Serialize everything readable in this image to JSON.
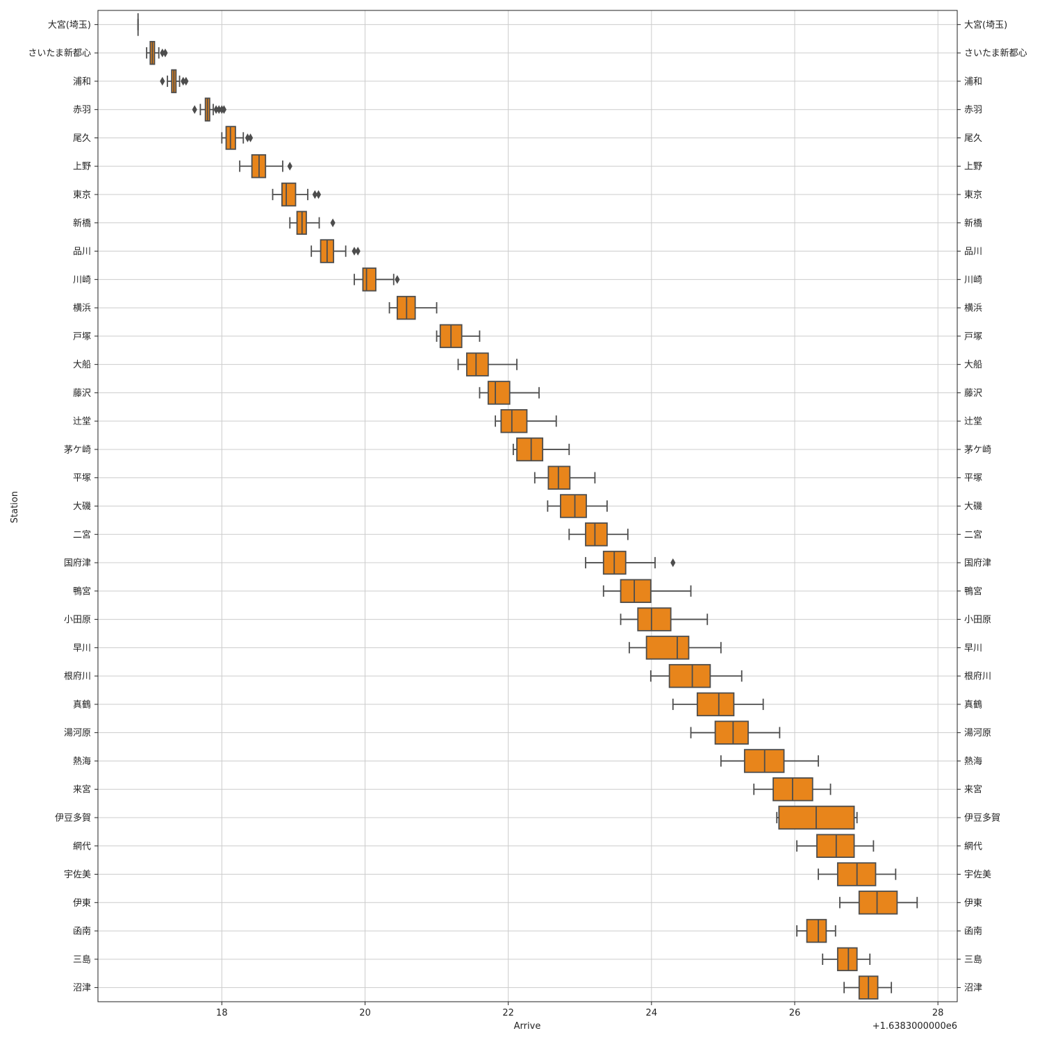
{
  "chart_data": {
    "type": "box",
    "orientation": "horizontal",
    "xlabel": "Arrive",
    "ylabel": "Station",
    "x_offset_label": "+1.6383000000e6",
    "xlim": [
      16.27,
      28.27
    ],
    "xticks": [
      18,
      20,
      22,
      24,
      26,
      28
    ],
    "grid": true,
    "box_color": "#e8851b",
    "line_color": "#4d4d4d",
    "grid_color": "#cccccc",
    "stations": [
      {
        "name": "大宮(埼玉)",
        "min": 16.83,
        "q1": 16.83,
        "median": 16.83,
        "q3": 16.83,
        "max": 16.83,
        "outliers": []
      },
      {
        "name": "さいたま新都心",
        "min": 16.95,
        "q1": 17.0,
        "median": 17.03,
        "q3": 17.06,
        "max": 17.12,
        "outliers": [
          17.17,
          17.21
        ]
      },
      {
        "name": "浦和",
        "min": 17.24,
        "q1": 17.3,
        "median": 17.33,
        "q3": 17.36,
        "max": 17.41,
        "outliers": [
          17.17,
          17.46,
          17.5
        ]
      },
      {
        "name": "赤羽",
        "min": 17.7,
        "q1": 17.77,
        "median": 17.8,
        "q3": 17.83,
        "max": 17.88,
        "outliers": [
          17.62,
          17.92,
          17.96,
          18.0,
          18.03
        ]
      },
      {
        "name": "尾久",
        "min": 18.0,
        "q1": 18.06,
        "median": 18.12,
        "q3": 18.19,
        "max": 18.3,
        "outliers": [
          18.36,
          18.4
        ]
      },
      {
        "name": "上野",
        "min": 18.25,
        "q1": 18.42,
        "median": 18.52,
        "q3": 18.61,
        "max": 18.85,
        "outliers": [
          18.95
        ]
      },
      {
        "name": "東京",
        "min": 18.71,
        "q1": 18.84,
        "median": 18.9,
        "q3": 19.03,
        "max": 19.2,
        "outliers": [
          19.3,
          19.35
        ]
      },
      {
        "name": "新橋",
        "min": 18.95,
        "q1": 19.05,
        "median": 19.12,
        "q3": 19.18,
        "max": 19.36,
        "outliers": [
          19.55
        ]
      },
      {
        "name": "品川",
        "min": 19.25,
        "q1": 19.38,
        "median": 19.47,
        "q3": 19.56,
        "max": 19.73,
        "outliers": [
          19.85,
          19.9
        ]
      },
      {
        "name": "川崎",
        "min": 19.85,
        "q1": 19.97,
        "median": 20.02,
        "q3": 20.15,
        "max": 20.4,
        "outliers": [
          20.45
        ]
      },
      {
        "name": "横浜",
        "min": 20.34,
        "q1": 20.45,
        "median": 20.58,
        "q3": 20.7,
        "max": 21.0,
        "outliers": []
      },
      {
        "name": "戸塚",
        "min": 21.0,
        "q1": 21.05,
        "median": 21.2,
        "q3": 21.35,
        "max": 21.6,
        "outliers": []
      },
      {
        "name": "大船",
        "min": 21.3,
        "q1": 21.42,
        "median": 21.55,
        "q3": 21.72,
        "max": 22.12,
        "outliers": []
      },
      {
        "name": "藤沢",
        "min": 21.6,
        "q1": 21.72,
        "median": 21.82,
        "q3": 22.02,
        "max": 22.43,
        "outliers": []
      },
      {
        "name": "辻堂",
        "min": 21.82,
        "q1": 21.9,
        "median": 22.05,
        "q3": 22.26,
        "max": 22.67,
        "outliers": []
      },
      {
        "name": "茅ケ崎",
        "min": 22.07,
        "q1": 22.12,
        "median": 22.32,
        "q3": 22.48,
        "max": 22.85,
        "outliers": []
      },
      {
        "name": "平塚",
        "min": 22.37,
        "q1": 22.56,
        "median": 22.7,
        "q3": 22.86,
        "max": 23.21,
        "outliers": []
      },
      {
        "name": "大磯",
        "min": 22.55,
        "q1": 22.73,
        "median": 22.93,
        "q3": 23.09,
        "max": 23.38,
        "outliers": []
      },
      {
        "name": "二宮",
        "min": 22.85,
        "q1": 23.08,
        "median": 23.21,
        "q3": 23.38,
        "max": 23.67,
        "outliers": []
      },
      {
        "name": "国府津",
        "min": 23.08,
        "q1": 23.33,
        "median": 23.48,
        "q3": 23.64,
        "max": 24.05,
        "outliers": [
          24.3
        ]
      },
      {
        "name": "鴨宮",
        "min": 23.33,
        "q1": 23.57,
        "median": 23.76,
        "q3": 23.99,
        "max": 24.55,
        "outliers": []
      },
      {
        "name": "小田原",
        "min": 23.57,
        "q1": 23.81,
        "median": 24.0,
        "q3": 24.27,
        "max": 24.78,
        "outliers": []
      },
      {
        "name": "早川",
        "min": 23.69,
        "q1": 23.93,
        "median": 24.36,
        "q3": 24.52,
        "max": 24.97,
        "outliers": []
      },
      {
        "name": "根府川",
        "min": 23.99,
        "q1": 24.25,
        "median": 24.57,
        "q3": 24.82,
        "max": 25.26,
        "outliers": []
      },
      {
        "name": "真鶴",
        "min": 24.3,
        "q1": 24.64,
        "median": 24.94,
        "q3": 25.15,
        "max": 25.56,
        "outliers": []
      },
      {
        "name": "湯河原",
        "min": 24.55,
        "q1": 24.89,
        "median": 25.14,
        "q3": 25.35,
        "max": 25.79,
        "outliers": []
      },
      {
        "name": "熱海",
        "min": 24.97,
        "q1": 25.3,
        "median": 25.58,
        "q3": 25.85,
        "max": 26.33,
        "outliers": []
      },
      {
        "name": "来宮",
        "min": 25.43,
        "q1": 25.7,
        "median": 25.97,
        "q3": 26.25,
        "max": 26.5,
        "outliers": []
      },
      {
        "name": "伊豆多賀",
        "min": 25.75,
        "q1": 25.78,
        "median": 26.3,
        "q3": 26.83,
        "max": 26.87,
        "outliers": []
      },
      {
        "name": "網代",
        "min": 26.03,
        "q1": 26.31,
        "median": 26.58,
        "q3": 26.83,
        "max": 27.1,
        "outliers": []
      },
      {
        "name": "宇佐美",
        "min": 26.33,
        "q1": 26.6,
        "median": 26.87,
        "q3": 27.13,
        "max": 27.41,
        "outliers": []
      },
      {
        "name": "伊東",
        "min": 26.63,
        "q1": 26.9,
        "median": 27.15,
        "q3": 27.43,
        "max": 27.71,
        "outliers": []
      },
      {
        "name": "函南",
        "min": 26.03,
        "q1": 26.17,
        "median": 26.33,
        "q3": 26.44,
        "max": 26.57,
        "outliers": []
      },
      {
        "name": "三島",
        "min": 26.39,
        "q1": 26.6,
        "median": 26.75,
        "q3": 26.87,
        "max": 27.05,
        "outliers": []
      },
      {
        "name": "沼津",
        "min": 26.69,
        "q1": 26.9,
        "median": 27.03,
        "q3": 27.16,
        "max": 27.35,
        "outliers": []
      }
    ]
  }
}
